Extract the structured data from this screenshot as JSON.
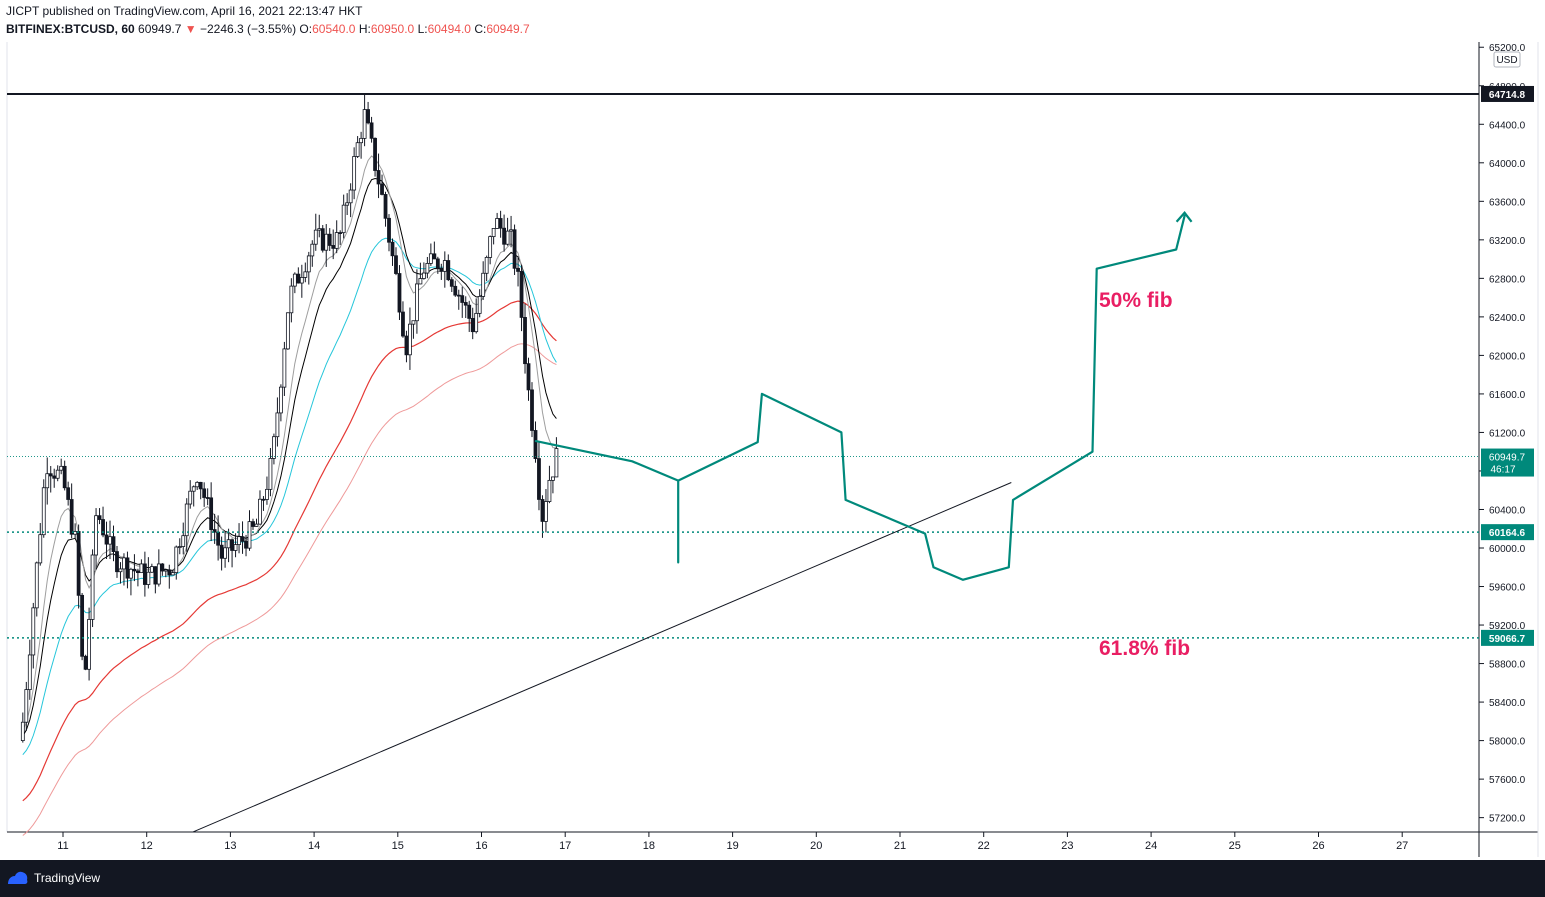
{
  "header": {
    "publisher_line": "JICPT published on TradingView.com, April 16, 2021 22:13:47 HKT",
    "symbol": "BITFINEX:BTCUSD, 60",
    "last_price": "60949.7",
    "change_arrow": "▼",
    "change": "−2246.3 (−3.55%)",
    "open_label": "O:",
    "open_value": "60540.0",
    "high_label": "H:",
    "high_value": "60950.0",
    "low_label": "L:",
    "low_value": "60494.0",
    "close_label": "C:",
    "close_value": "60949.7"
  },
  "price_axis": {
    "currency": "USD",
    "ticks": [
      "65200.0",
      "64800.0",
      "64400.0",
      "64000.0",
      "63600.0",
      "63200.0",
      "62800.0",
      "62400.0",
      "62000.0",
      "61600.0",
      "61200.0",
      "60800.0",
      "60400.0",
      "60000.0",
      "59600.0",
      "59200.0",
      "58800.0",
      "58400.0",
      "58000.0",
      "57600.0",
      "57200.0"
    ],
    "tags": {
      "resistance": "64714.8",
      "last": "60949.7",
      "countdown": "46:17",
      "support_1": "60164.6",
      "support_2": "59066.7"
    }
  },
  "time_axis": {
    "labels": [
      "11",
      "12",
      "13",
      "14",
      "15",
      "16",
      "17",
      "18",
      "19",
      "20",
      "21",
      "22",
      "23",
      "24",
      "25",
      "26",
      "27"
    ]
  },
  "annotations": {
    "fib_50": "50% fib",
    "fib_618": "61.8% fib"
  },
  "colors": {
    "up": "#ffffff",
    "down": "#131722",
    "teal_path": "#00897b",
    "fib_text": "#e91e63",
    "ema_red": "#e53935",
    "ema_salmon": "#ef9a9a",
    "ema_cyan": "#26c6da",
    "ema_black": "#000000",
    "ema_gray": "#9e9e9e",
    "last_tag": "#00897b"
  },
  "chart_data": {
    "type": "candlestick",
    "symbol": "BITFINEX:BTCUSD",
    "interval": "60",
    "ylim": [
      57000,
      65300
    ],
    "x_dates": [
      "11",
      "12",
      "13",
      "14",
      "15",
      "16",
      "17",
      "18",
      "19",
      "20",
      "21",
      "22",
      "23",
      "24",
      "25",
      "26",
      "27"
    ],
    "horizontal_levels": [
      64714.8,
      60164.6,
      59066.7
    ],
    "last_price": 60949.7,
    "trendline": {
      "from": {
        "day": 12.55,
        "price": 57050
      },
      "to": {
        "day": 22.33,
        "price": 60680
      }
    },
    "candles_anchor": [
      {
        "day": 10.5,
        "price": 58000
      },
      {
        "day": 10.8,
        "price": 60900
      },
      {
        "day": 11.0,
        "price": 60700
      },
      {
        "day": 11.15,
        "price": 60050
      },
      {
        "day": 11.25,
        "price": 58500
      },
      {
        "day": 11.4,
        "price": 60400
      },
      {
        "day": 11.6,
        "price": 59900
      },
      {
        "day": 12.0,
        "price": 59700
      },
      {
        "day": 12.3,
        "price": 59800
      },
      {
        "day": 12.6,
        "price": 60800
      },
      {
        "day": 12.9,
        "price": 59900
      },
      {
        "day": 13.3,
        "price": 60200
      },
      {
        "day": 13.5,
        "price": 60900
      },
      {
        "day": 13.7,
        "price": 62600
      },
      {
        "day": 14.0,
        "price": 63200
      },
      {
        "day": 14.3,
        "price": 63200
      },
      {
        "day": 14.5,
        "price": 64100
      },
      {
        "day": 14.6,
        "price": 64500
      },
      {
        "day": 14.8,
        "price": 63700
      },
      {
        "day": 15.0,
        "price": 62700
      },
      {
        "day": 15.1,
        "price": 62100
      },
      {
        "day": 15.3,
        "price": 62900
      },
      {
        "day": 15.55,
        "price": 63000
      },
      {
        "day": 15.75,
        "price": 62600
      },
      {
        "day": 15.9,
        "price": 62300
      },
      {
        "day": 16.05,
        "price": 62900
      },
      {
        "day": 16.15,
        "price": 63400
      },
      {
        "day": 16.35,
        "price": 63200
      },
      {
        "day": 16.45,
        "price": 62700
      },
      {
        "day": 16.55,
        "price": 61700
      },
      {
        "day": 16.65,
        "price": 61000
      },
      {
        "day": 16.72,
        "price": 60300
      },
      {
        "day": 16.8,
        "price": 60700
      },
      {
        "day": 16.9,
        "price": 60949.7
      }
    ],
    "projection_path": [
      {
        "day": 16.65,
        "price": 61110
      },
      {
        "day": 17.8,
        "price": 60900
      },
      {
        "day": 18.35,
        "price": 60700
      },
      {
        "day": 18.35,
        "price": 59850
      },
      {
        "day": 18.35,
        "price": 60700
      },
      {
        "day": 19.3,
        "price": 61100
      },
      {
        "day": 19.35,
        "price": 61600
      },
      {
        "day": 20.3,
        "price": 61200
      },
      {
        "day": 20.35,
        "price": 60500
      },
      {
        "day": 21.3,
        "price": 60150
      },
      {
        "day": 21.4,
        "price": 59800
      },
      {
        "day": 21.75,
        "price": 59670
      },
      {
        "day": 22.3,
        "price": 59800
      },
      {
        "day": 22.35,
        "price": 60500
      },
      {
        "day": 23.3,
        "price": 61000
      },
      {
        "day": 23.35,
        "price": 62900
      },
      {
        "day": 24.3,
        "price": 63100
      },
      {
        "day": 24.4,
        "price": 63450
      }
    ]
  }
}
